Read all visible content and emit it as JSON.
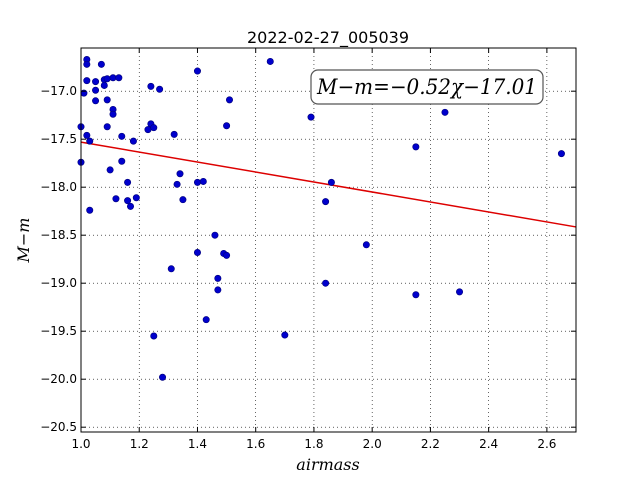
{
  "chart_data": {
    "type": "scatter",
    "title": "2022-02-27_005039",
    "xlabel": "airmass",
    "ylabel": "M−m",
    "xlim": [
      1.0,
      2.7
    ],
    "ylim": [
      -20.55,
      -16.55
    ],
    "y_inverted": true,
    "grid": true,
    "grid_style": "dotted",
    "x_ticks": [
      1.0,
      1.2,
      1.4,
      1.6,
      1.8,
      2.0,
      2.2,
      2.4,
      2.6
    ],
    "x_tick_labels": [
      "1.0",
      "1.2",
      "1.4",
      "1.6",
      "1.8",
      "2.0",
      "2.2",
      "2.4",
      "2.6"
    ],
    "y_ticks": [
      -17.0,
      -17.5,
      -18.0,
      -18.5,
      -19.0,
      -19.5,
      -20.0,
      -20.5
    ],
    "y_tick_labels": [
      "−17.0",
      "−17.5",
      "−18.0",
      "−18.5",
      "−19.0",
      "−19.5",
      "−20.0",
      "−20.5"
    ],
    "point_color": "#0000cc",
    "fit_color": "#dd0000",
    "annotation": "M−m=−0.52χ−17.01",
    "fit": {
      "slope": -0.52,
      "intercept": -17.01
    },
    "points": [
      [
        1.0,
        -17.37
      ],
      [
        1.0,
        -17.74
      ],
      [
        1.01,
        -17.02
      ],
      [
        1.02,
        -16.67
      ],
      [
        1.02,
        -16.72
      ],
      [
        1.02,
        -16.89
      ],
      [
        1.02,
        -17.46
      ],
      [
        1.03,
        -17.52
      ],
      [
        1.03,
        -18.24
      ],
      [
        1.05,
        -16.9
      ],
      [
        1.05,
        -16.99
      ],
      [
        1.05,
        -17.1
      ],
      [
        1.07,
        -16.72
      ],
      [
        1.08,
        -16.88
      ],
      [
        1.08,
        -16.94
      ],
      [
        1.09,
        -16.87
      ],
      [
        1.09,
        -17.09
      ],
      [
        1.09,
        -17.37
      ],
      [
        1.1,
        -17.82
      ],
      [
        1.11,
        -16.86
      ],
      [
        1.11,
        -17.19
      ],
      [
        1.11,
        -17.24
      ],
      [
        1.12,
        -18.12
      ],
      [
        1.13,
        -16.86
      ],
      [
        1.14,
        -17.47
      ],
      [
        1.14,
        -17.73
      ],
      [
        1.16,
        -18.14
      ],
      [
        1.16,
        -17.95
      ],
      [
        1.17,
        -18.2
      ],
      [
        1.18,
        -17.52
      ],
      [
        1.19,
        -18.11
      ],
      [
        1.23,
        -17.4
      ],
      [
        1.24,
        -16.95
      ],
      [
        1.24,
        -17.34
      ],
      [
        1.25,
        -17.38
      ],
      [
        1.25,
        -19.55
      ],
      [
        1.27,
        -16.98
      ],
      [
        1.28,
        -19.98
      ],
      [
        1.31,
        -18.85
      ],
      [
        1.32,
        -17.45
      ],
      [
        1.33,
        -17.97
      ],
      [
        1.34,
        -17.86
      ],
      [
        1.35,
        -18.13
      ],
      [
        1.4,
        -16.79
      ],
      [
        1.4,
        -18.68
      ],
      [
        1.4,
        -17.95
      ],
      [
        1.42,
        -17.94
      ],
      [
        1.43,
        -19.38
      ],
      [
        1.46,
        -18.5
      ],
      [
        1.47,
        -18.95
      ],
      [
        1.47,
        -19.07
      ],
      [
        1.49,
        -18.69
      ],
      [
        1.5,
        -18.71
      ],
      [
        1.5,
        -17.36
      ],
      [
        1.51,
        -17.09
      ],
      [
        1.65,
        -16.69
      ],
      [
        1.7,
        -19.54
      ],
      [
        1.79,
        -17.27
      ],
      [
        1.84,
        -18.15
      ],
      [
        1.84,
        -19.0
      ],
      [
        1.86,
        -17.95
      ],
      [
        1.98,
        -18.6
      ],
      [
        2.15,
        -17.58
      ],
      [
        2.15,
        -19.12
      ],
      [
        2.25,
        -17.22
      ],
      [
        2.3,
        -19.09
      ],
      [
        2.65,
        -17.65
      ]
    ]
  }
}
